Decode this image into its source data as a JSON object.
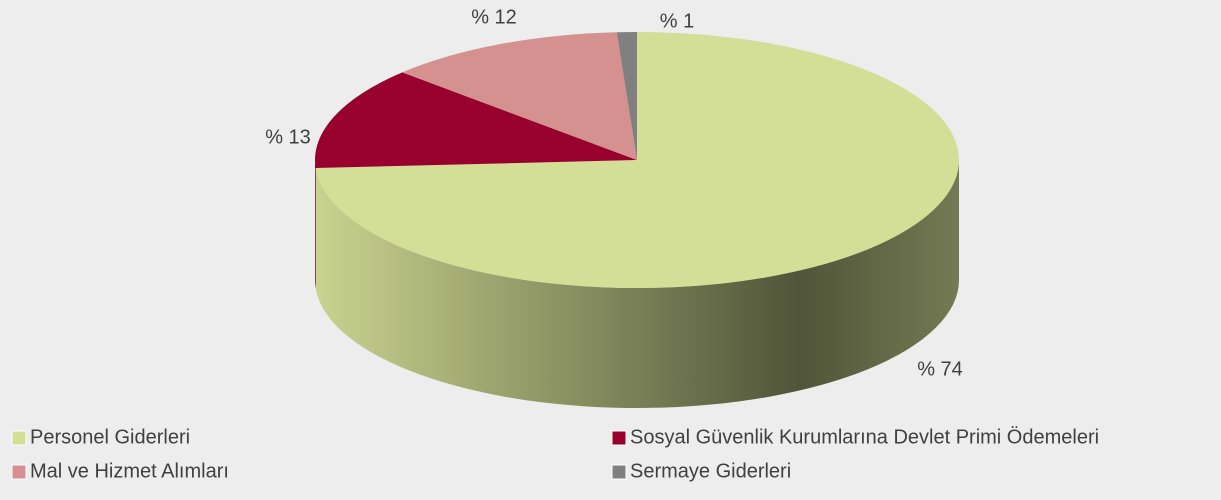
{
  "chart_data": {
    "type": "pie",
    "categories": [
      "Personel Giderleri",
      "Sosyal Güvenlik Kurumlarına Devlet Primi Ödemeleri",
      "Mal ve Hizmet Alımları",
      "Sermaye Giderleri"
    ],
    "values": [
      74,
      13,
      12,
      1
    ],
    "value_labels": [
      "% 74",
      "% 13",
      "% 12",
      "% 1"
    ],
    "colors": [
      "#d3de96",
      "#98002e",
      "#d49190",
      "#808080"
    ]
  }
}
